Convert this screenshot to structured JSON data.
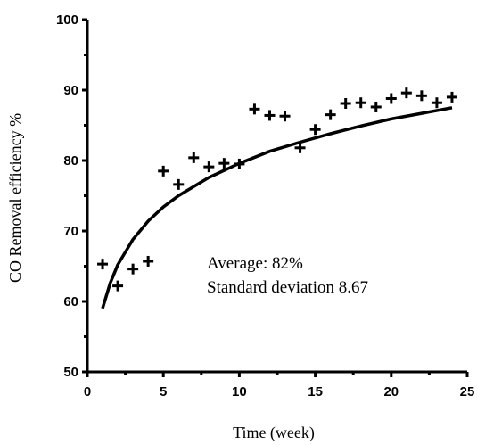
{
  "chart_data": {
    "type": "scatter",
    "title": "",
    "xlabel": "Time (week)",
    "ylabel": "CO Removal efficiency %",
    "xlim": [
      0,
      25
    ],
    "ylim": [
      50,
      100
    ],
    "x_ticks": [
      "0",
      "5",
      "10",
      "15",
      "20",
      "25"
    ],
    "y_ticks": [
      "50",
      "60",
      "70",
      "80",
      "90",
      "100"
    ],
    "grid": false,
    "marker": "plus",
    "series": [
      {
        "x": [
          1,
          2,
          3,
          4,
          5,
          6,
          7,
          8,
          9,
          10,
          11,
          12,
          13,
          14,
          15,
          16,
          17,
          18,
          19,
          20,
          21,
          22,
          23,
          24
        ],
        "y": [
          65.3,
          62.2,
          64.6,
          65.7,
          78.5,
          76.6,
          80.4,
          79.1,
          79.6,
          79.5,
          87.3,
          86.4,
          86.3,
          81.8,
          84.4,
          86.5,
          88.1,
          88.2,
          87.6,
          88.8,
          89.6,
          89.2,
          88.2,
          89.0
        ]
      }
    ],
    "fit_curve": {
      "type": "logarithmic",
      "x": [
        1,
        1.5,
        2,
        3,
        4,
        5,
        6,
        8,
        10,
        12,
        14,
        16,
        18,
        20,
        22,
        24
      ],
      "y": [
        59.0,
        62.6,
        65.2,
        68.8,
        71.4,
        73.4,
        75.0,
        77.6,
        79.6,
        81.3,
        82.6,
        83.8,
        84.9,
        85.9,
        86.7,
        87.5
      ]
    },
    "annotations": [
      "Average: 82%",
      "Standard deviation 8.67"
    ]
  }
}
